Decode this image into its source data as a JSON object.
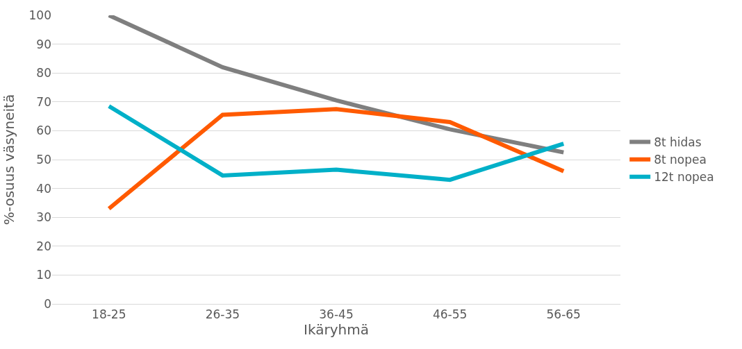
{
  "chart_data": {
    "type": "line",
    "xlabel": "Ikäryhmä",
    "ylabel": "%-osuus väsyneitä",
    "categories": [
      "18-25",
      "26-35",
      "36-45",
      "46-55",
      "56-65"
    ],
    "series": [
      {
        "name": "8t hidas",
        "color": "#7f7f7f",
        "values": [
          100,
          82,
          70.5,
          60.5,
          52.5
        ]
      },
      {
        "name": "8t nopea",
        "color": "#ff5a00",
        "values": [
          33,
          65.5,
          67.5,
          63,
          46
        ]
      },
      {
        "name": "12t nopea",
        "color": "#00b0c8",
        "values": [
          68.5,
          44.5,
          46.5,
          43,
          55.5
        ]
      }
    ],
    "ylim": [
      0,
      100
    ],
    "yticks": [
      0,
      10,
      20,
      30,
      40,
      50,
      60,
      70,
      80,
      90,
      100
    ],
    "grid": "y",
    "legend": "right",
    "marker": "none",
    "line_style": "solid"
  }
}
